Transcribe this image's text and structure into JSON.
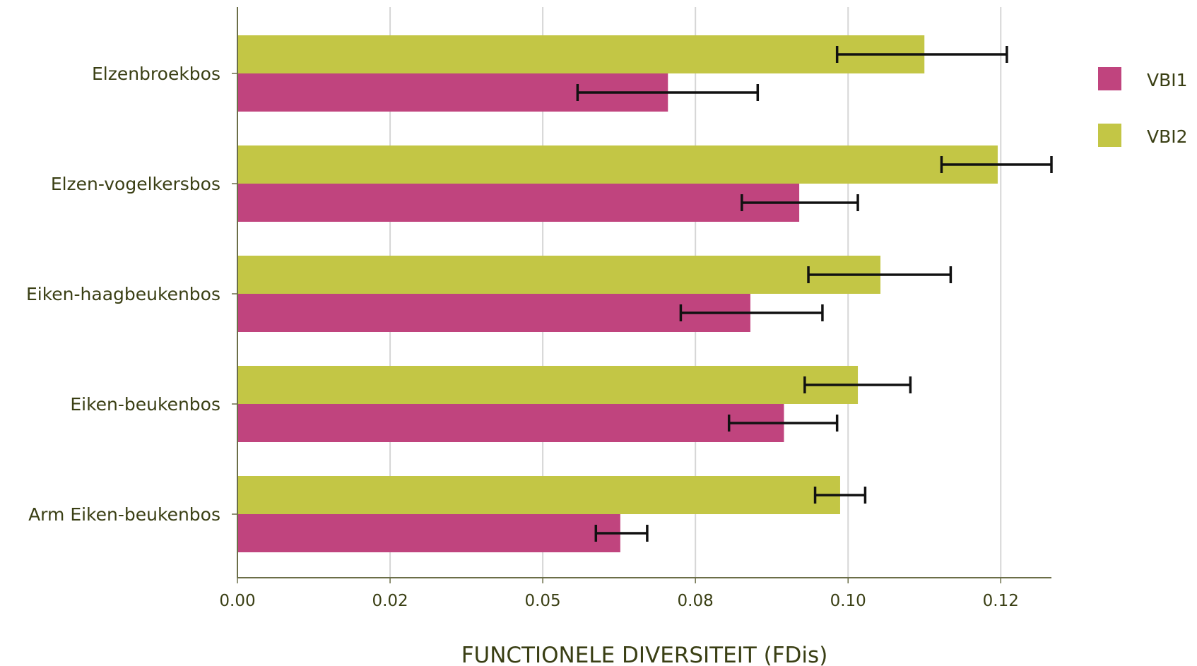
{
  "chart_data": {
    "type": "bar",
    "orientation": "horizontal",
    "xlabel": "FUNCTIONELE DIVERSITEIT (FDis)",
    "xlim": [
      0,
      0.1333
    ],
    "xticks": [
      0,
      0.025,
      0.05,
      0.075,
      0.1,
      0.125
    ],
    "xtick_labels": [
      "0.00",
      "0.02",
      "0.05",
      "0.08",
      "0.10",
      "0.12"
    ],
    "grid": "vertical",
    "legend_position": "right",
    "categories": [
      "Elzenbroekbos",
      "Elzen-vogelkersbos",
      "Eiken-haagbeukenbos",
      "Eiken-beukenbos",
      "Arm Eiken-beukenbos"
    ],
    "series": [
      {
        "name": "VBI1",
        "color": "#c0447e",
        "values": [
          0.0705,
          0.092,
          0.084,
          0.0895,
          0.0627
        ],
        "error_low": [
          0.0557,
          0.0826,
          0.0726,
          0.0805,
          0.0587
        ],
        "error_high": [
          0.0852,
          0.1016,
          0.0958,
          0.0982,
          0.0671
        ]
      },
      {
        "name": "VBI2",
        "color": "#c3c645",
        "values": [
          0.1125,
          0.1245,
          0.1053,
          0.1016,
          0.0987
        ],
        "error_low": [
          0.0982,
          0.1153,
          0.0935,
          0.0929,
          0.0946
        ],
        "error_high": [
          0.126,
          0.1333,
          0.1168,
          0.1102,
          0.1028
        ]
      }
    ]
  }
}
